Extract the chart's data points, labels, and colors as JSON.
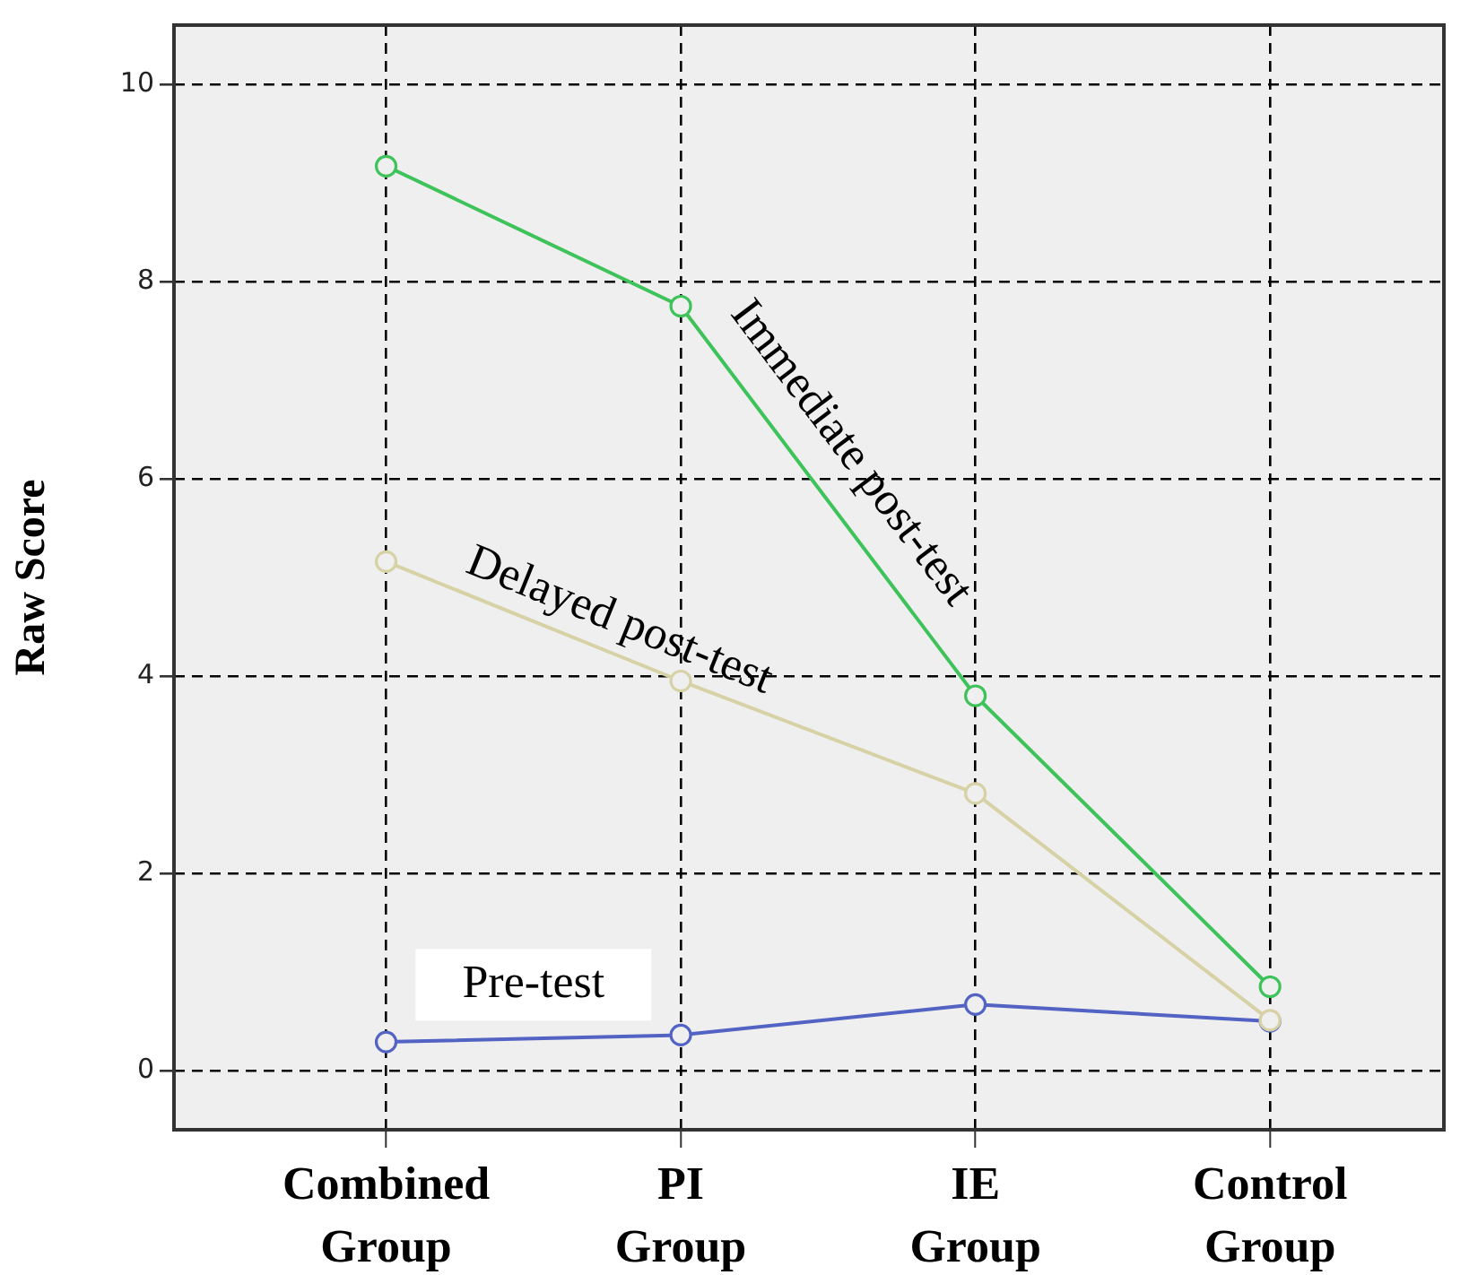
{
  "chart_data": {
    "type": "line",
    "ylabel": "Raw Score",
    "categories": [
      "Combined Group",
      "PI Group",
      "IE Group",
      "Control Group"
    ],
    "ylim": [
      -0.6,
      10.6
    ],
    "yticks": [
      0,
      2,
      4,
      6,
      8,
      10
    ],
    "grid": true,
    "legend": false,
    "marker": "circle",
    "line_style": "solid",
    "series": [
      {
        "name": "Immediate post-test",
        "color": "#3ec25a",
        "values": [
          9.17,
          7.75,
          3.8,
          0.85
        ]
      },
      {
        "name": "Delayed post-test",
        "color": "#d6d2a6",
        "values": [
          5.16,
          3.95,
          2.81,
          0.51
        ]
      },
      {
        "name": "Pre-test",
        "color": "#5263c4",
        "values": [
          0.29,
          0.36,
          0.67,
          0.5
        ]
      }
    ]
  }
}
